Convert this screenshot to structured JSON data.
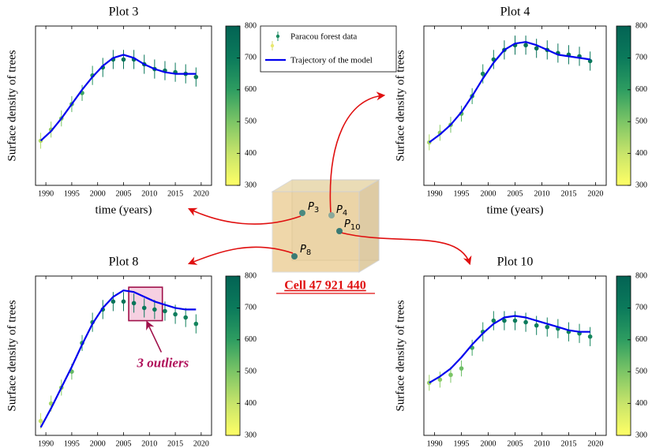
{
  "legend": {
    "entries": [
      "Paracou forest data",
      "Trajectory of the model"
    ]
  },
  "diagram": {
    "points": [
      {
        "symbol": "P",
        "index": "3"
      },
      {
        "symbol": "P",
        "index": "4"
      },
      {
        "symbol": "P",
        "index": "10"
      },
      {
        "symbol": "P",
        "index": "8"
      }
    ],
    "caption": "Cell 47 921 440"
  },
  "chart_data": [
    {
      "type": "line",
      "title": "Plot 3",
      "xlabel": "time (years)",
      "ylabel": "Surface density of trees",
      "xlim": [
        1988,
        2022
      ],
      "ylim": [
        0,
        1
      ],
      "xticks": [
        1990,
        1995,
        2000,
        2005,
        2010,
        2015,
        2020
      ],
      "points": {
        "x": [
          1989,
          1991,
          1993,
          1995,
          1997,
          1999,
          2001,
          2003,
          2005,
          2007,
          2009,
          2011,
          2013,
          2015,
          2017,
          2019
        ],
        "values": [
          0.28,
          0.35,
          0.42,
          0.51,
          0.58,
          0.69,
          0.74,
          0.79,
          0.79,
          0.79,
          0.76,
          0.73,
          0.72,
          0.71,
          0.7,
          0.68
        ],
        "errors": [
          0.05,
          0.05,
          0.05,
          0.05,
          0.05,
          0.06,
          0.06,
          0.06,
          0.06,
          0.06,
          0.06,
          0.06,
          0.06,
          0.06,
          0.06,
          0.06
        ],
        "c": [
          430,
          470,
          500,
          540,
          580,
          620,
          690,
          720,
          730,
          730,
          720,
          720,
          720,
          710,
          710,
          700
        ]
      },
      "model": {
        "color": "#0000ee",
        "x": [
          1989,
          1991,
          1993,
          1995,
          1997,
          1999,
          2001,
          2003,
          2005,
          2007,
          2009,
          2011,
          2013,
          2015,
          2017,
          2019
        ],
        "values": [
          0.28,
          0.34,
          0.42,
          0.51,
          0.6,
          0.68,
          0.75,
          0.8,
          0.82,
          0.8,
          0.76,
          0.73,
          0.71,
          0.7,
          0.7,
          0.7
        ]
      },
      "colorbar": {
        "clim": [
          300,
          800
        ],
        "ticks": [
          300,
          400,
          500,
          600,
          700,
          800
        ],
        "colors": [
          "#ffff66",
          "#c8e46a",
          "#7cc566",
          "#2e9d61",
          "#0b7a5b",
          "#036354"
        ]
      }
    },
    {
      "type": "line",
      "title": "Plot 4",
      "xlabel": "time (years)",
      "ylabel": "Surface density of trees",
      "xlim": [
        1988,
        2022
      ],
      "ylim": [
        0,
        1
      ],
      "xticks": [
        1990,
        1995,
        2000,
        2005,
        2010,
        2015,
        2020
      ],
      "points": {
        "x": [
          1989,
          1991,
          1993,
          1995,
          1997,
          1999,
          2001,
          2003,
          2005,
          2007,
          2009,
          2011,
          2013,
          2015,
          2017,
          2019
        ],
        "values": [
          0.27,
          0.33,
          0.38,
          0.45,
          0.56,
          0.7,
          0.79,
          0.85,
          0.88,
          0.88,
          0.86,
          0.85,
          0.83,
          0.82,
          0.81,
          0.78
        ],
        "errors": [
          0.05,
          0.05,
          0.05,
          0.05,
          0.05,
          0.06,
          0.06,
          0.06,
          0.06,
          0.06,
          0.06,
          0.06,
          0.06,
          0.06,
          0.06,
          0.06
        ],
        "c": [
          440,
          480,
          510,
          550,
          600,
          650,
          690,
          730,
          740,
          750,
          740,
          730,
          730,
          720,
          720,
          710
        ]
      },
      "model": {
        "color": "#0000ee",
        "x": [
          1989,
          1991,
          1993,
          1995,
          1997,
          1999,
          2001,
          2003,
          2005,
          2007,
          2009,
          2011,
          2013,
          2015,
          2017,
          2019
        ],
        "values": [
          0.27,
          0.32,
          0.38,
          0.46,
          0.56,
          0.67,
          0.77,
          0.85,
          0.89,
          0.9,
          0.88,
          0.85,
          0.82,
          0.81,
          0.8,
          0.79
        ]
      },
      "colorbar": {
        "clim": [
          300,
          800
        ],
        "ticks": [
          300,
          400,
          500,
          600,
          700,
          800
        ],
        "colors": [
          "#ffff66",
          "#c8e46a",
          "#7cc566",
          "#2e9d61",
          "#0b7a5b",
          "#036354"
        ]
      }
    },
    {
      "type": "line",
      "title": "Plot 8",
      "ylabel": "Surface density of trees",
      "xlim": [
        1988,
        2022
      ],
      "ylim": [
        0,
        1
      ],
      "xticks": [
        1990,
        1995,
        2000,
        2005,
        2010,
        2015,
        2020
      ],
      "points": {
        "x": [
          1989,
          1991,
          1993,
          1995,
          1997,
          1999,
          2001,
          2003,
          2005,
          2007,
          2009,
          2011,
          2013,
          2015,
          2017,
          2019
        ],
        "values": [
          0.09,
          0.2,
          0.3,
          0.4,
          0.58,
          0.71,
          0.79,
          0.84,
          0.84,
          0.83,
          0.8,
          0.79,
          0.78,
          0.76,
          0.74,
          0.7
        ],
        "errors": [
          0.05,
          0.05,
          0.05,
          0.05,
          0.05,
          0.06,
          0.06,
          0.06,
          0.06,
          0.06,
          0.06,
          0.06,
          0.06,
          0.06,
          0.06,
          0.06
        ],
        "c": [
          400,
          450,
          490,
          530,
          600,
          650,
          690,
          720,
          730,
          720,
          710,
          700,
          700,
          690,
          680,
          670
        ]
      },
      "model": {
        "color": "#0000ee",
        "x": [
          1989,
          1991,
          1993,
          1995,
          1997,
          1999,
          2001,
          2003,
          2005,
          2007,
          2009,
          2011,
          2013,
          2015,
          2017,
          2019
        ],
        "values": [
          0.05,
          0.17,
          0.3,
          0.43,
          0.57,
          0.7,
          0.8,
          0.87,
          0.91,
          0.9,
          0.87,
          0.84,
          0.82,
          0.8,
          0.79,
          0.79
        ]
      },
      "annotation": {
        "text": "3 outliers",
        "box_x": [
          2006,
          2012.5
        ],
        "box_y": [
          0.72,
          0.93
        ]
      },
      "colorbar": {
        "clim": [
          300,
          800
        ],
        "ticks": [
          300,
          400,
          500,
          600,
          700,
          800
        ],
        "colors": [
          "#ffff66",
          "#c8e46a",
          "#7cc566",
          "#2e9d61",
          "#0b7a5b",
          "#036354"
        ]
      }
    },
    {
      "type": "line",
      "title": "Plot 10",
      "ylabel": "Surface density of trees",
      "xlim": [
        1988,
        2022
      ],
      "ylim": [
        0,
        1
      ],
      "xticks": [
        1990,
        1995,
        2000,
        2005,
        2010,
        2015,
        2020
      ],
      "points": {
        "x": [
          1989,
          1991,
          1993,
          1995,
          1997,
          1999,
          2001,
          2003,
          2005,
          2007,
          2009,
          2011,
          2013,
          2015,
          2017,
          2019
        ],
        "values": [
          0.33,
          0.35,
          0.38,
          0.42,
          0.55,
          0.65,
          0.72,
          0.72,
          0.72,
          0.71,
          0.69,
          0.68,
          0.67,
          0.65,
          0.64,
          0.62
        ],
        "errors": [
          0.05,
          0.05,
          0.05,
          0.05,
          0.05,
          0.06,
          0.06,
          0.06,
          0.06,
          0.06,
          0.06,
          0.06,
          0.06,
          0.06,
          0.06,
          0.06
        ],
        "c": [
          460,
          480,
          500,
          520,
          580,
          630,
          670,
          700,
          700,
          700,
          690,
          690,
          680,
          680,
          670,
          670
        ]
      },
      "model": {
        "color": "#0000ee",
        "x": [
          1989,
          1991,
          1993,
          1995,
          1997,
          1999,
          2001,
          2003,
          2005,
          2007,
          2009,
          2011,
          2013,
          2015,
          2017,
          2019
        ],
        "values": [
          0.33,
          0.37,
          0.42,
          0.49,
          0.57,
          0.64,
          0.7,
          0.74,
          0.75,
          0.74,
          0.72,
          0.7,
          0.68,
          0.66,
          0.65,
          0.65
        ]
      },
      "colorbar": {
        "clim": [
          300,
          800
        ],
        "ticks": [
          300,
          400,
          500,
          600,
          700,
          800
        ],
        "colors": [
          "#ffff66",
          "#c8e46a",
          "#7cc566",
          "#2e9d61",
          "#0b7a5b",
          "#036354"
        ]
      }
    }
  ]
}
